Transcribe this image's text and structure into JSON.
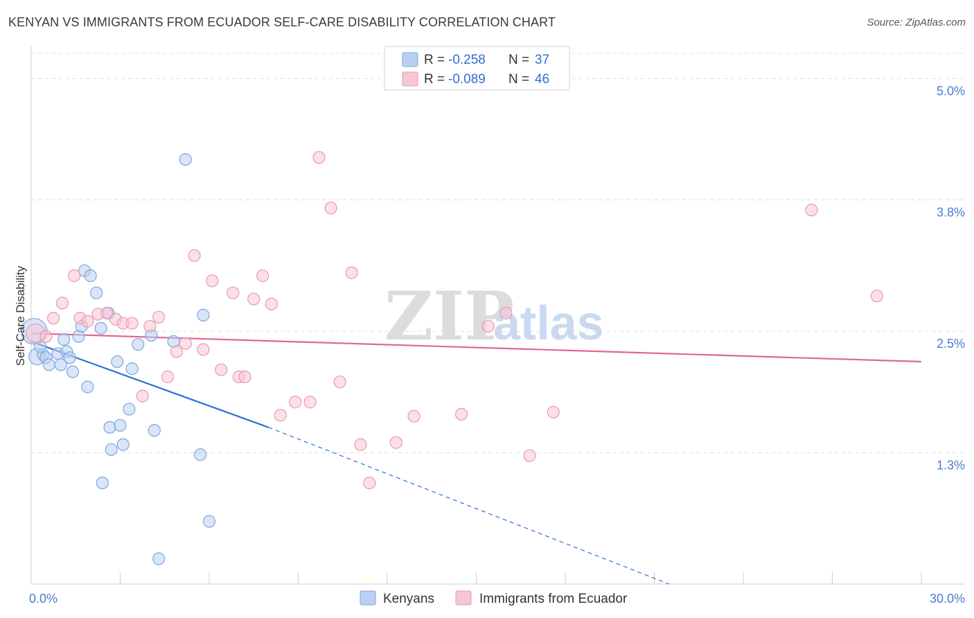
{
  "title": "KENYAN VS IMMIGRANTS FROM ECUADOR SELF-CARE DISABILITY CORRELATION CHART",
  "source": "Source: ZipAtlas.com",
  "watermark": {
    "zip": "ZIP",
    "atlas": "atlas"
  },
  "colors": {
    "kenyan_fill": "#b9d0f2",
    "kenyan_stroke": "#7fa6df",
    "kenyan_line": "#2d6fd2",
    "ecuador_fill": "#f7c6d5",
    "ecuador_stroke": "#ea97b2",
    "ecuador_line": "#e0678f",
    "grid": "#dddddd",
    "tick_label": "#4a7bd0"
  },
  "legend_top": {
    "rows": [
      {
        "r_label": "R =",
        "r_value": "-0.258",
        "n_label": "N =",
        "n_value": "37"
      },
      {
        "r_label": "R =",
        "r_value": "-0.089",
        "n_label": "N =",
        "n_value": "46"
      }
    ]
  },
  "legend_bottom": {
    "items": [
      {
        "label": "Kenyans"
      },
      {
        "label": "Immigrants from Ecuador"
      }
    ]
  },
  "chart_data": {
    "type": "scatter",
    "title": "KENYAN VS IMMIGRANTS FROM ECUADOR SELF-CARE DISABILITY CORRELATION CHART",
    "xlabel": "",
    "ylabel": "Self-Care Disability",
    "xlim": [
      0,
      30
    ],
    "ylim": [
      0,
      5.25
    ],
    "x_tick_labels": [
      {
        "value": 0,
        "label": "0.0%"
      },
      {
        "value": 30,
        "label": "30.0%"
      }
    ],
    "y_tick_labels": [
      {
        "value": 1.3,
        "label": "1.3%"
      },
      {
        "value": 2.5,
        "label": "2.5%"
      },
      {
        "value": 3.8,
        "label": "3.8%"
      },
      {
        "value": 5.0,
        "label": "5.0%"
      }
    ],
    "grid": true,
    "legend_position": "top-center",
    "series": [
      {
        "name": "Kenyans",
        "R": -0.258,
        "N": 37,
        "trend": {
          "x0": 0,
          "y0": 2.4,
          "x1": 8,
          "y1": 1.55,
          "dashed_to_x": 21.5,
          "dashed_to_y": 0.0
        },
        "points": [
          [
            0.1,
            2.5,
            2.2
          ],
          [
            0.2,
            2.25,
            1.4
          ],
          [
            0.4,
            2.27,
            1
          ],
          [
            0.5,
            2.24,
            1
          ],
          [
            0.6,
            2.17,
            1
          ],
          [
            0.9,
            2.28,
            1
          ],
          [
            1.0,
            2.17,
            1
          ],
          [
            1.1,
            2.42,
            1
          ],
          [
            1.2,
            2.3,
            1
          ],
          [
            1.3,
            2.24,
            1
          ],
          [
            1.4,
            2.1,
            1
          ],
          [
            1.6,
            2.45,
            1
          ],
          [
            1.7,
            2.55,
            1
          ],
          [
            1.8,
            3.1,
            1
          ],
          [
            1.9,
            1.95,
            1
          ],
          [
            2.0,
            3.05,
            1
          ],
          [
            2.2,
            2.88,
            1
          ],
          [
            2.35,
            2.53,
            1
          ],
          [
            2.4,
            1.0,
            1
          ],
          [
            2.6,
            2.68,
            1
          ],
          [
            2.65,
            1.55,
            1
          ],
          [
            2.7,
            1.33,
            1
          ],
          [
            2.9,
            2.2,
            1
          ],
          [
            3.0,
            1.57,
            1
          ],
          [
            3.1,
            1.38,
            1
          ],
          [
            3.3,
            1.73,
            1
          ],
          [
            3.4,
            2.13,
            1
          ],
          [
            3.6,
            2.37,
            1
          ],
          [
            4.05,
            2.46,
            1
          ],
          [
            4.15,
            1.52,
            1
          ],
          [
            4.3,
            0.25,
            1
          ],
          [
            4.8,
            2.4,
            1
          ],
          [
            5.2,
            4.2,
            1
          ],
          [
            5.7,
            1.28,
            1
          ],
          [
            5.8,
            2.66,
            1
          ],
          [
            6.0,
            0.62,
            1
          ],
          [
            0.3,
            2.35,
            1
          ]
        ]
      },
      {
        "name": "Immigrants from Ecuador",
        "R": -0.089,
        "N": 46,
        "trend": {
          "x0": 0,
          "y0": 2.48,
          "x1": 30,
          "y1": 2.2
        },
        "points": [
          [
            0.15,
            2.48,
            1.6
          ],
          [
            0.5,
            2.45,
            1
          ],
          [
            0.75,
            2.63,
            1
          ],
          [
            1.05,
            2.78,
            1
          ],
          [
            1.45,
            3.05,
            1
          ],
          [
            1.65,
            2.63,
            1
          ],
          [
            1.9,
            2.6,
            1
          ],
          [
            2.25,
            2.67,
            1
          ],
          [
            2.55,
            2.68,
            1
          ],
          [
            2.85,
            2.62,
            1
          ],
          [
            3.1,
            2.58,
            1
          ],
          [
            3.4,
            2.58,
            1
          ],
          [
            3.75,
            1.86,
            1
          ],
          [
            4.0,
            2.55,
            1
          ],
          [
            4.3,
            2.64,
            1
          ],
          [
            4.6,
            2.05,
            1
          ],
          [
            4.9,
            2.3,
            1
          ],
          [
            5.2,
            2.38,
            1
          ],
          [
            5.5,
            3.25,
            1
          ],
          [
            5.8,
            2.32,
            1
          ],
          [
            6.1,
            3.0,
            1
          ],
          [
            6.4,
            2.12,
            1
          ],
          [
            6.8,
            2.88,
            1
          ],
          [
            7.0,
            2.05,
            1
          ],
          [
            7.2,
            2.05,
            1
          ],
          [
            7.5,
            2.82,
            1
          ],
          [
            7.8,
            3.05,
            1
          ],
          [
            8.1,
            2.77,
            1
          ],
          [
            8.4,
            1.67,
            1
          ],
          [
            8.9,
            1.8,
            1
          ],
          [
            9.4,
            1.8,
            1
          ],
          [
            9.7,
            4.22,
            1
          ],
          [
            10.1,
            3.72,
            1
          ],
          [
            10.4,
            2.0,
            1
          ],
          [
            10.8,
            3.08,
            1
          ],
          [
            11.1,
            1.38,
            1
          ],
          [
            11.4,
            1.0,
            1
          ],
          [
            12.3,
            1.4,
            1
          ],
          [
            12.9,
            1.66,
            1
          ],
          [
            14.5,
            1.68,
            1
          ],
          [
            15.4,
            2.55,
            1
          ],
          [
            16.0,
            2.68,
            1
          ],
          [
            16.8,
            1.27,
            1
          ],
          [
            17.6,
            1.7,
            1
          ],
          [
            26.3,
            3.7,
            1
          ],
          [
            28.5,
            2.85,
            1
          ]
        ]
      }
    ]
  }
}
